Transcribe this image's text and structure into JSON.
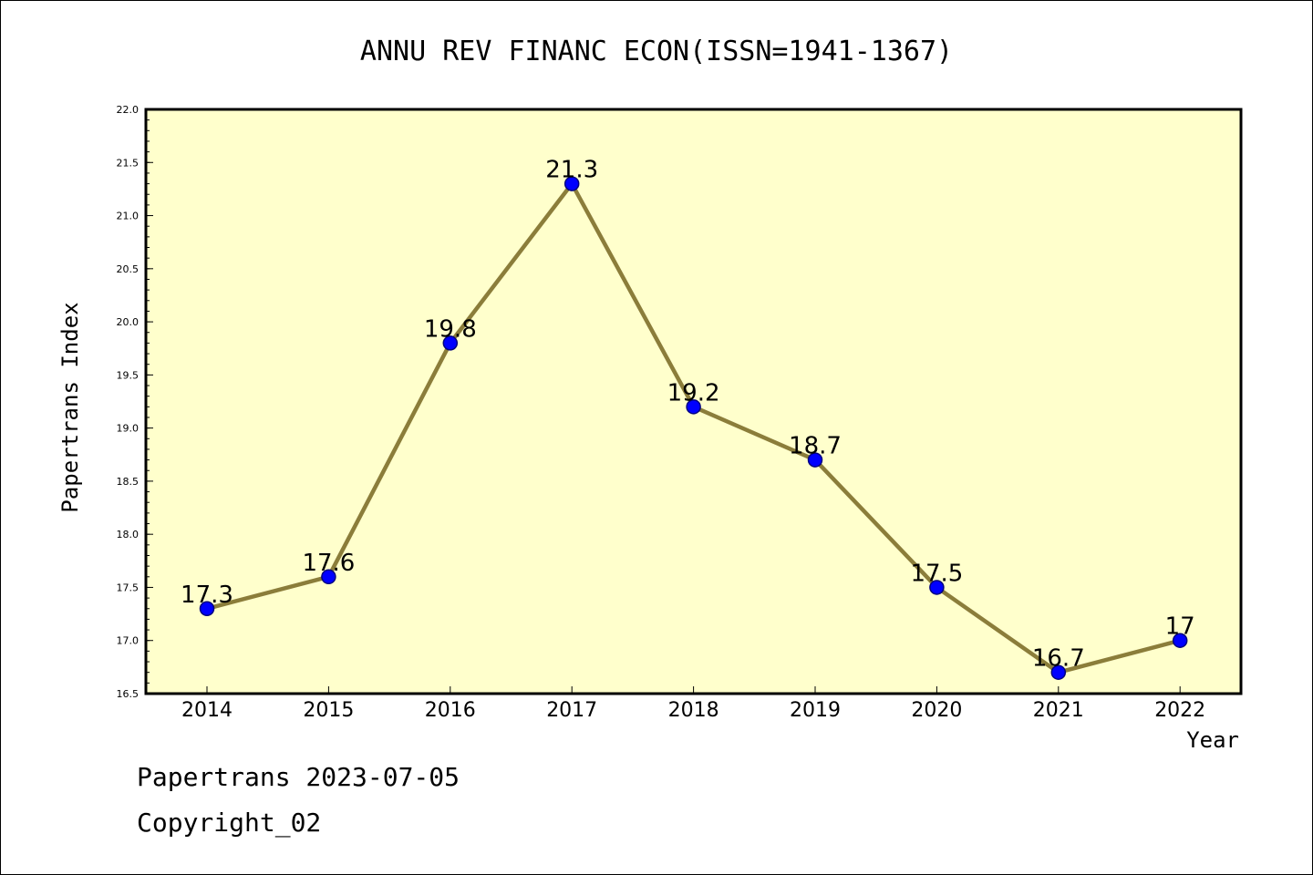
{
  "chart_data": {
    "type": "line",
    "title": "ANNU REV FINANC ECON(ISSN=1941-1367)",
    "xlabel": "Year",
    "ylabel": "Papertrans Index",
    "categories": [
      "2014",
      "2015",
      "2016",
      "2017",
      "2018",
      "2019",
      "2020",
      "2021",
      "2022"
    ],
    "series": [
      {
        "values": [
          17.3,
          17.6,
          19.8,
          21.3,
          19.2,
          18.7,
          17.5,
          16.7,
          17.0
        ],
        "labels": [
          "17.3",
          "17.6",
          "19.8",
          "21.3",
          "19.2",
          "18.7",
          "17.5",
          "16.7",
          "17"
        ]
      }
    ],
    "ylim": [
      16.5,
      22.0
    ],
    "yticks": [
      "16.5",
      "17.0",
      "17.5",
      "18.0",
      "18.5",
      "19.0",
      "19.5",
      "20.0",
      "20.5",
      "21.0",
      "21.5",
      "22.0"
    ],
    "grid": false,
    "colors": {
      "plot_background": "#ffffcc",
      "line": "#8b7d3a",
      "marker_fill": "#0000ff",
      "marker_edge": "#000080"
    }
  },
  "footer": {
    "line1": "Papertrans 2023-07-05",
    "line2": "Copyright_02"
  }
}
